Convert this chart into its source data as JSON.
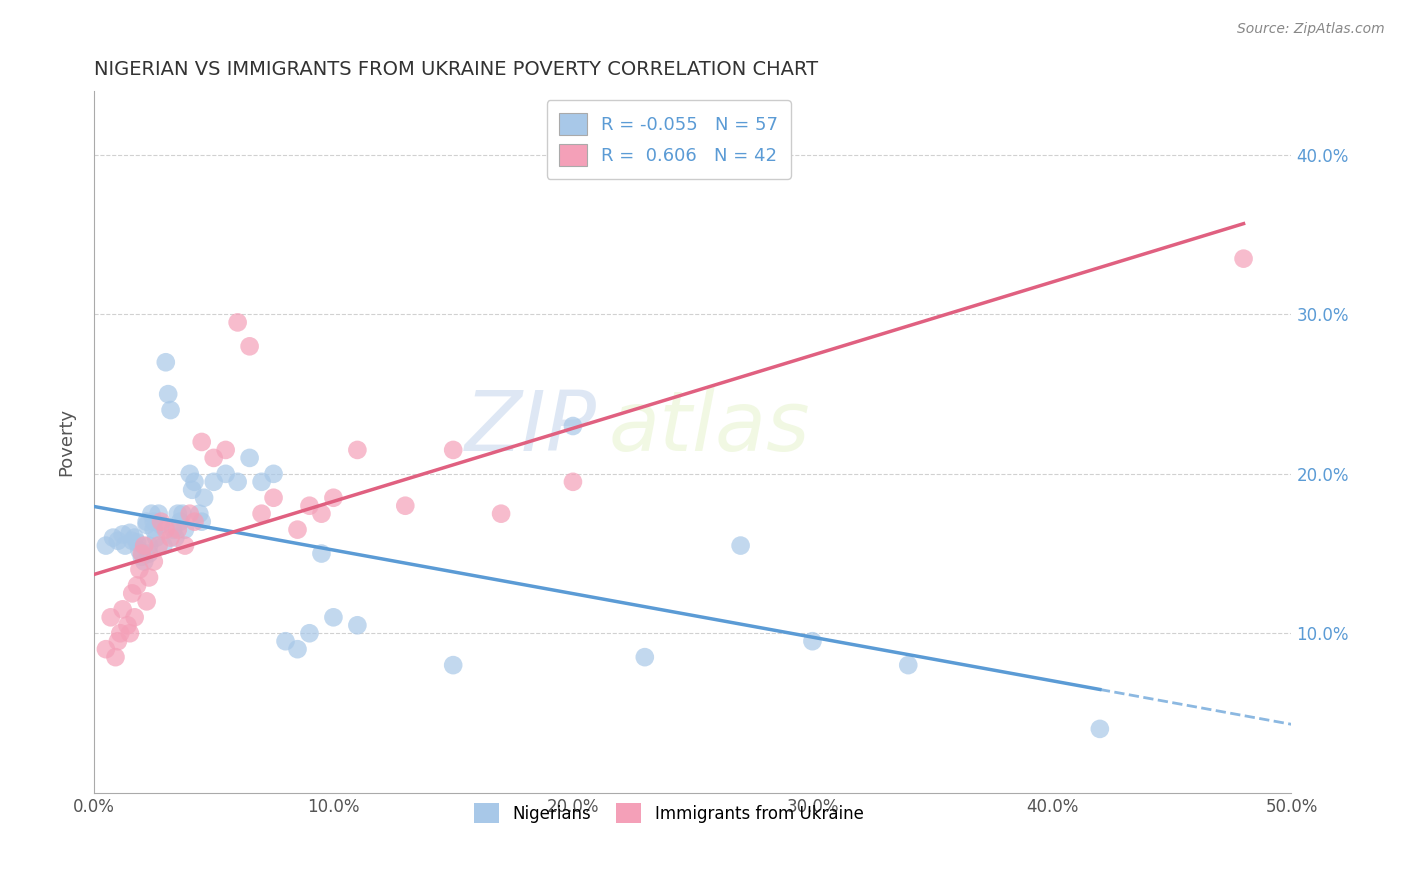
{
  "title": "NIGERIAN VS IMMIGRANTS FROM UKRAINE POVERTY CORRELATION CHART",
  "source": "Source: ZipAtlas.com",
  "ylabel": "Poverty",
  "xlim": [
    0.0,
    0.5
  ],
  "ylim": [
    0.0,
    0.44
  ],
  "right_yticks": [
    0.1,
    0.2,
    0.3,
    0.4
  ],
  "right_yticklabels": [
    "10.0%",
    "20.0%",
    "30.0%",
    "40.0%"
  ],
  "bottom_xticks": [
    0.0,
    0.1,
    0.2,
    0.3,
    0.4,
    0.5
  ],
  "bottom_xticklabels": [
    "0.0%",
    "10.0%",
    "20.0%",
    "30.0%",
    "40.0%",
    "50.0%"
  ],
  "nigerian_R": -0.055,
  "nigerian_N": 57,
  "ukraine_R": 0.606,
  "ukraine_N": 42,
  "nigerian_color": "#a8c8e8",
  "ukraine_color": "#f4a0b8",
  "nigerian_line_color": "#5b9bd5",
  "ukraine_line_color": "#e06080",
  "legend_label_nigerian": "Nigerians",
  "legend_label_ukraine": "Immigrants from Ukraine",
  "watermark_zip": "ZIP",
  "watermark_atlas": "atlas",
  "background_color": "#ffffff",
  "grid_color": "#cccccc",
  "nigerian_x": [
    0.005,
    0.008,
    0.01,
    0.012,
    0.013,
    0.015,
    0.016,
    0.017,
    0.018,
    0.019,
    0.02,
    0.021,
    0.022,
    0.022,
    0.023,
    0.023,
    0.024,
    0.025,
    0.025,
    0.026,
    0.027,
    0.028,
    0.029,
    0.03,
    0.031,
    0.032,
    0.033,
    0.034,
    0.035,
    0.036,
    0.037,
    0.038,
    0.04,
    0.041,
    0.042,
    0.044,
    0.045,
    0.046,
    0.05,
    0.055,
    0.06,
    0.065,
    0.07,
    0.075,
    0.08,
    0.085,
    0.09,
    0.095,
    0.1,
    0.11,
    0.15,
    0.2,
    0.23,
    0.27,
    0.3,
    0.34,
    0.42
  ],
  "nigerian_y": [
    0.155,
    0.16,
    0.158,
    0.162,
    0.155,
    0.163,
    0.158,
    0.16,
    0.157,
    0.152,
    0.148,
    0.145,
    0.168,
    0.17,
    0.155,
    0.15,
    0.175,
    0.165,
    0.17,
    0.16,
    0.175,
    0.168,
    0.155,
    0.27,
    0.25,
    0.24,
    0.165,
    0.16,
    0.175,
    0.17,
    0.175,
    0.165,
    0.2,
    0.19,
    0.195,
    0.175,
    0.17,
    0.185,
    0.195,
    0.2,
    0.195,
    0.21,
    0.195,
    0.2,
    0.095,
    0.09,
    0.1,
    0.15,
    0.11,
    0.105,
    0.08,
    0.23,
    0.085,
    0.155,
    0.095,
    0.08,
    0.04
  ],
  "ukraine_x": [
    0.005,
    0.007,
    0.009,
    0.01,
    0.011,
    0.012,
    0.014,
    0.015,
    0.016,
    0.017,
    0.018,
    0.019,
    0.02,
    0.021,
    0.022,
    0.023,
    0.025,
    0.027,
    0.028,
    0.03,
    0.032,
    0.035,
    0.038,
    0.04,
    0.042,
    0.045,
    0.05,
    0.055,
    0.06,
    0.065,
    0.07,
    0.075,
    0.085,
    0.09,
    0.095,
    0.1,
    0.11,
    0.13,
    0.15,
    0.17,
    0.2,
    0.48
  ],
  "ukraine_y": [
    0.09,
    0.11,
    0.085,
    0.095,
    0.1,
    0.115,
    0.105,
    0.1,
    0.125,
    0.11,
    0.13,
    0.14,
    0.15,
    0.155,
    0.12,
    0.135,
    0.145,
    0.155,
    0.17,
    0.165,
    0.16,
    0.165,
    0.155,
    0.175,
    0.17,
    0.22,
    0.21,
    0.215,
    0.295,
    0.28,
    0.175,
    0.185,
    0.165,
    0.18,
    0.175,
    0.185,
    0.215,
    0.18,
    0.215,
    0.175,
    0.195,
    0.335
  ]
}
